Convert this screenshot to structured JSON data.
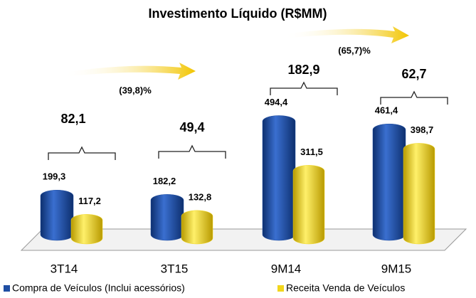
{
  "chart_data": {
    "type": "bar",
    "title": "Investimento Líquido (R$MM)",
    "categories": [
      "3T14",
      "3T15",
      "9M14",
      "9M15"
    ],
    "series": [
      {
        "name": "Compra de Veículos (Inclui acessórios)",
        "color": "#1f4ea3",
        "values": [
          199.3,
          182.2,
          494.4,
          461.4
        ],
        "value_labels": [
          "199,3",
          "182,2",
          "494,4",
          "461,4"
        ]
      },
      {
        "name": "Receita Venda de Veículos",
        "color": "#f2d61c",
        "values": [
          117.2,
          132.8,
          311.5,
          398.7
        ],
        "value_labels": [
          "117,2",
          "132,8",
          "311,5",
          "398,7"
        ]
      }
    ],
    "totals": [
      "82,1",
      "49,4",
      "182,9",
      "62,7"
    ],
    "changes": [
      "(39,8)%",
      "(65,7)%"
    ]
  }
}
